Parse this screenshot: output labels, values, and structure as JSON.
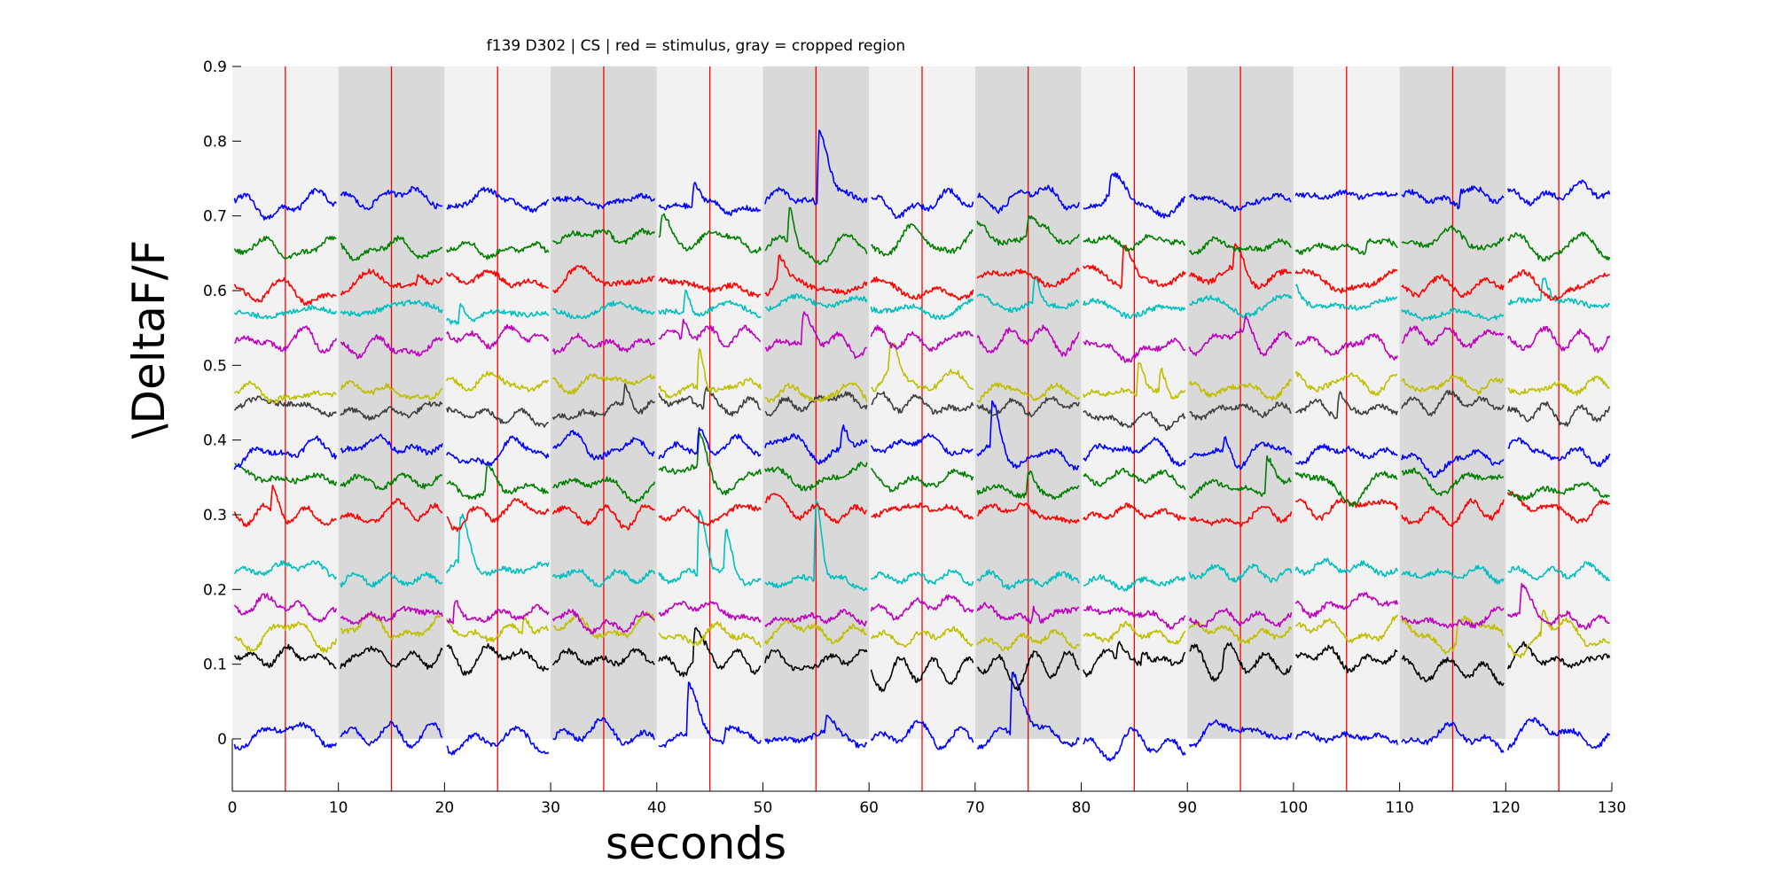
{
  "chart_data": {
    "type": "line",
    "title": "f139 D302 | CS | red = stimulus, gray = cropped region",
    "xlabel": "seconds",
    "ylabel": "\\DeltaF/F",
    "xlim": [
      0,
      130
    ],
    "ylim": [
      -0.07,
      0.9
    ],
    "xticks": [
      0,
      10,
      20,
      30,
      40,
      50,
      60,
      70,
      80,
      90,
      100,
      110,
      120,
      130
    ],
    "yticks": [
      0,
      0.1,
      0.2,
      0.3,
      0.4,
      0.5,
      0.6,
      0.7,
      0.8,
      0.9
    ],
    "grid": false,
    "legend": "none",
    "segment_length_s": 10,
    "segment_count": 13,
    "segment_shading": [
      "#f2f2f2",
      "#d9d9d9",
      "#f2f2f2",
      "#d9d9d9",
      "#f2f2f2",
      "#d9d9d9",
      "#f2f2f2",
      "#d9d9d9",
      "#f2f2f2",
      "#d9d9d9",
      "#f2f2f2",
      "#d9d9d9",
      "#f2f2f2"
    ],
    "cropped_segment_indices": [
      1,
      3,
      5,
      7,
      9,
      11
    ],
    "stimulus_times": [
      5,
      15,
      25,
      35,
      45,
      55,
      65,
      75,
      85,
      95,
      105,
      115,
      125
    ],
    "stimulus_color": "#ff0000",
    "series": [
      {
        "color": "#0000ff",
        "baseline": 0.0,
        "events": [
          [
            43,
            0.07,
            1.0
          ],
          [
            46.5,
            0.02,
            1.2
          ],
          [
            56,
            0.02,
            0.6
          ],
          [
            73.5,
            0.09,
            1.2
          ]
        ]
      },
      {
        "color": "#000000",
        "baseline": 0.1,
        "events": [
          [
            43.6,
            0.035,
            0.35
          ],
          [
            83.5,
            0.02,
            0.7
          ],
          [
            85.8,
            0.02,
            0.5
          ],
          [
            93.5,
            0.02,
            0.8
          ]
        ]
      },
      {
        "color": "#bfbf00",
        "baseline": 0.14,
        "events": [
          [
            27.5,
            0.025,
            0.5
          ],
          [
            115.5,
            0.02,
            0.6
          ],
          [
            123.5,
            0.03,
            0.4
          ]
        ]
      },
      {
        "color": "#bf00bf",
        "baseline": 0.17,
        "events": [
          [
            21,
            0.03,
            0.4
          ],
          [
            75.5,
            0.02,
            0.4
          ],
          [
            121.5,
            0.035,
            0.6
          ]
        ]
      },
      {
        "color": "#00bfbf",
        "baseline": 0.22,
        "events": [
          [
            21.5,
            0.06,
            0.7
          ],
          [
            44,
            0.09,
            0.7
          ],
          [
            46.5,
            0.05,
            0.5
          ],
          [
            55,
            0.11,
            0.5
          ]
        ]
      },
      {
        "color": "#ff0000",
        "baseline": 0.3,
        "events": [
          [
            3.8,
            0.035,
            0.7
          ]
        ]
      },
      {
        "color": "#007f00",
        "baseline": 0.34,
        "events": [
          [
            24,
            0.035,
            0.7
          ],
          [
            44,
            0.045,
            0.7
          ],
          [
            75,
            0.03,
            0.6
          ],
          [
            97.5,
            0.05,
            0.7
          ]
        ]
      },
      {
        "color": "#0000ff",
        "baseline": 0.385,
        "events": [
          [
            44,
            0.03,
            0.6
          ],
          [
            57.5,
            0.03,
            0.5
          ],
          [
            71.6,
            0.055,
            0.6
          ],
          [
            93.5,
            0.025,
            0.6
          ]
        ]
      },
      {
        "color": "#3f3f3f",
        "baseline": 0.44,
        "events": [
          [
            37,
            0.03,
            0.8
          ],
          [
            44.6,
            0.025,
            0.6
          ],
          [
            104.3,
            0.03,
            0.5
          ]
        ]
      },
      {
        "color": "#bfbf00",
        "baseline": 0.47,
        "events": [
          [
            44,
            0.055,
            0.4
          ],
          [
            62,
            0.04,
            0.6
          ],
          [
            85.4,
            0.045,
            0.5
          ],
          [
            87.5,
            0.03,
            0.4
          ]
        ]
      },
      {
        "color": "#bf00bf",
        "baseline": 0.53,
        "events": [
          [
            42.5,
            0.03,
            0.6
          ],
          [
            53.8,
            0.04,
            0.8
          ],
          [
            95.5,
            0.02,
            0.6
          ]
        ]
      },
      {
        "color": "#00bfbf",
        "baseline": 0.575,
        "events": [
          [
            21.5,
            0.025,
            0.4
          ],
          [
            42.7,
            0.03,
            0.4
          ],
          [
            75.6,
            0.035,
            0.4
          ],
          [
            100,
            0.02,
            0.5
          ],
          [
            123.5,
            0.03,
            0.5
          ]
        ]
      },
      {
        "color": "#ff0000",
        "baseline": 0.61,
        "events": [
          [
            17.5,
            0.015,
            0.5
          ],
          [
            51.5,
            0.03,
            0.5
          ],
          [
            84,
            0.055,
            0.8
          ],
          [
            94.5,
            0.035,
            0.8
          ]
        ]
      },
      {
        "color": "#007f00",
        "baseline": 0.665,
        "events": [
          [
            40.5,
            0.03,
            0.6
          ],
          [
            52.5,
            0.05,
            0.4
          ],
          [
            75,
            0.025,
            0.6
          ],
          [
            107,
            0.015,
            0.5
          ]
        ]
      },
      {
        "color": "#0000ff",
        "baseline": 0.72,
        "events": [
          [
            43.5,
            0.03,
            0.5
          ],
          [
            55.3,
            0.1,
            1.0
          ],
          [
            82.8,
            0.02,
            1.0
          ],
          [
            115.8,
            0.02,
            1.2
          ]
        ]
      }
    ]
  }
}
